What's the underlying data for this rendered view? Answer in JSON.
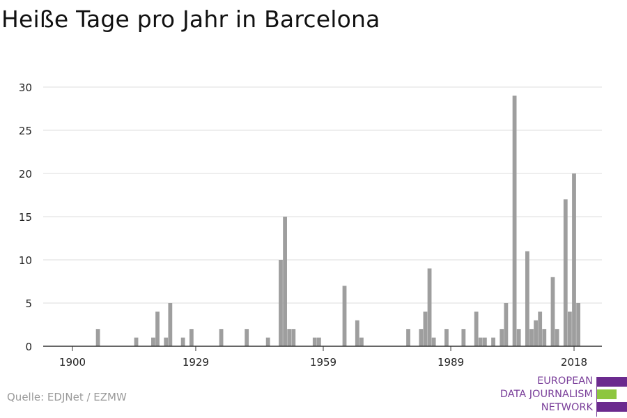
{
  "title": "Heiße Tage pro Jahr in Barcelona",
  "source": "Quelle: EDJNet / EZMW",
  "logo": {
    "lines": [
      "EUROPEAN",
      "DATA JOURNALISM",
      "NETWORK"
    ],
    "colors": {
      "purple": "#6b2a8e",
      "green": "#8dc63f",
      "text": "#7a3f9a"
    }
  },
  "colors": {
    "bar": "#9e9e9e",
    "grid": "#dcdcdc",
    "axis": "#333333"
  },
  "chart_data": {
    "type": "bar",
    "title": "Heiße Tage pro Jahr in Barcelona",
    "xlabel": "",
    "ylabel": "",
    "xlim": [
      1900,
      2018
    ],
    "ylim": [
      0,
      30
    ],
    "yticks": [
      0,
      5,
      10,
      15,
      20,
      25,
      30
    ],
    "xticks": [
      1900,
      1929,
      1959,
      1989,
      2018
    ],
    "grid": true,
    "x": [
      1906,
      1915,
      1919,
      1920,
      1922,
      1923,
      1926,
      1928,
      1935,
      1941,
      1946,
      1949,
      1950,
      1951,
      1952,
      1957,
      1958,
      1964,
      1967,
      1968,
      1979,
      1982,
      1983,
      1984,
      1985,
      1988,
      1992,
      1995,
      1996,
      1997,
      1999,
      2001,
      2002,
      2004,
      2005,
      2007,
      2008,
      2009,
      2010,
      2011,
      2013,
      2014,
      2016,
      2017,
      2018,
      2019
    ],
    "values": [
      2,
      1,
      1,
      4,
      1,
      5,
      1,
      2,
      2,
      2,
      1,
      10,
      15,
      2,
      2,
      1,
      1,
      7,
      3,
      1,
      2,
      2,
      4,
      9,
      1,
      2,
      2,
      4,
      1,
      1,
      1,
      2,
      5,
      29,
      2,
      11,
      2,
      3,
      4,
      2,
      8,
      2,
      17,
      4,
      20,
      5
    ]
  }
}
